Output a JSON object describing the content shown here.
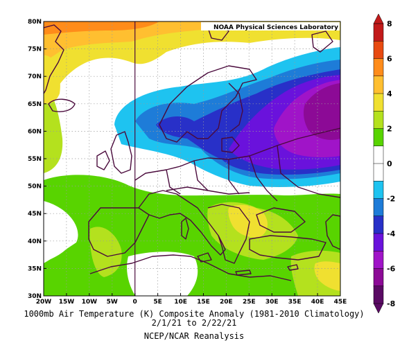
{
  "map": {
    "credit": "NOAA Physical Sciences Laboratory",
    "lat_labels": [
      "80N",
      "75N",
      "70N",
      "65N",
      "60N",
      "55N",
      "50N",
      "45N",
      "40N",
      "35N",
      "30N"
    ],
    "lon_labels": [
      "20W",
      "15W",
      "10W",
      "5W",
      "0",
      "5E",
      "10E",
      "15E",
      "20E",
      "25E",
      "30E",
      "35E",
      "40E",
      "45E"
    ],
    "lon_range": [
      -20,
      45
    ],
    "lat_range": [
      30,
      80
    ],
    "caption_line1": "1000mb Air Temperature (K) Composite Anomaly (1981-2010 Climatology)",
    "caption_line2": "2/1/21  to 2/22/21",
    "caption_line3": "NCEP/NCAR Reanalysis"
  },
  "colorbar": {
    "labels": [
      "8",
      "6",
      "4",
      "2",
      "0",
      "-2",
      "-4",
      "-6",
      "-8"
    ],
    "colors": [
      "#c21a1a",
      "#e84a10",
      "#ff8c1a",
      "#ffbf30",
      "#f0e030",
      "#b4e11e",
      "#58d400",
      "#ffffff",
      "#ffffff",
      "#1ec3f0",
      "#1e7cd8",
      "#2830c8",
      "#6a12dc",
      "#a014c8",
      "#8c0a96",
      "#5a0a64"
    ]
  },
  "colors": {
    "coast": "#4a0a3c",
    "grid": "#9a9a9a"
  }
}
